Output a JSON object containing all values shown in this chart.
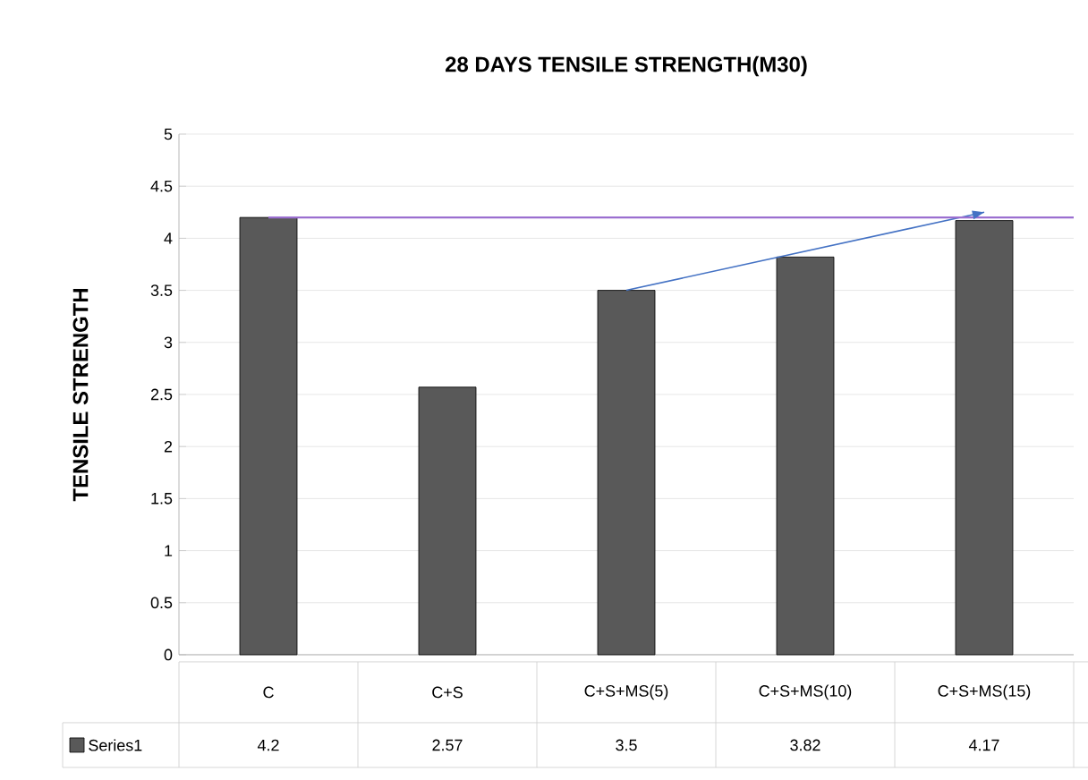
{
  "chart_data": {
    "type": "bar",
    "title": "28 DAYS TENSILE STRENGTH(M30)",
    "ylabel": "TENSILE  STRENGTH",
    "categories": [
      "C",
      "C+S",
      "C+S+MS(5)",
      "C+S+MS(10)",
      "C+S+MS(15)"
    ],
    "series": [
      {
        "name": "Series1",
        "color": "#595959",
        "values": [
          4.2,
          2.57,
          3.5,
          3.82,
          4.17
        ],
        "value_labels": [
          "4.2",
          "2.57",
          "3.5",
          "3.82",
          "4.17"
        ]
      },
      {
        "type": "line",
        "color": "#4472c4",
        "x": [
          "C+S+MS(5)",
          "C+S+MS(15)"
        ],
        "values": [
          3.5,
          4.25
        ]
      }
    ],
    "ylim": [
      0,
      5
    ],
    "yticks": [
      0,
      0.5,
      1,
      1.5,
      2,
      2.5,
      3,
      3.5,
      4,
      4.5,
      5
    ],
    "ref_lines": [
      {
        "axis": "y",
        "value": 4.2,
        "color": "#9b6fd0"
      }
    ],
    "grid": "y",
    "legend": "bottom"
  }
}
